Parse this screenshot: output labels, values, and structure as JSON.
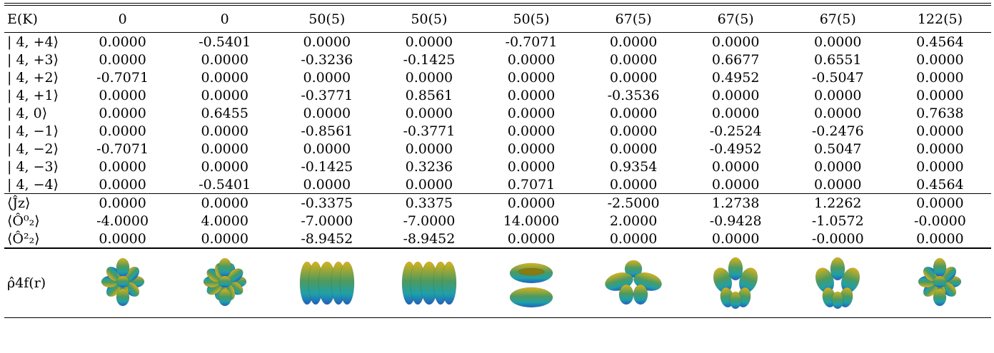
{
  "table": {
    "headers": [
      "E(K)",
      "0",
      "0",
      "50(5)",
      "50(5)",
      "50(5)",
      "67(5)",
      "67(5)",
      "67(5)",
      "122(5)"
    ],
    "rows": [
      {
        "label": "| 4, +4⟩",
        "values": [
          "0.0000",
          "-0.5401",
          "0.0000",
          "0.0000",
          "-0.7071",
          "0.0000",
          "0.0000",
          "0.0000",
          "0.4564"
        ]
      },
      {
        "label": "| 4, +3⟩",
        "values": [
          "0.0000",
          "0.0000",
          "-0.3236",
          "-0.1425",
          "0.0000",
          "0.0000",
          "0.6677",
          "0.6551",
          "0.0000"
        ]
      },
      {
        "label": "| 4, +2⟩",
        "values": [
          "-0.7071",
          "0.0000",
          "0.0000",
          "0.0000",
          "0.0000",
          "0.0000",
          "0.4952",
          "-0.5047",
          "0.0000"
        ]
      },
      {
        "label": "| 4, +1⟩",
        "values": [
          "0.0000",
          "0.0000",
          "-0.3771",
          "0.8561",
          "0.0000",
          "-0.3536",
          "0.0000",
          "0.0000",
          "0.0000"
        ]
      },
      {
        "label": "| 4,   0⟩",
        "values": [
          "0.0000",
          "0.6455",
          "0.0000",
          "0.0000",
          "0.0000",
          "0.0000",
          "0.0000",
          "0.0000",
          "0.7638"
        ]
      },
      {
        "label": "| 4, −1⟩",
        "values": [
          "0.0000",
          "0.0000",
          "-0.8561",
          "-0.3771",
          "0.0000",
          "0.0000",
          "-0.2524",
          "-0.2476",
          "0.0000"
        ]
      },
      {
        "label": "| 4, −2⟩",
        "values": [
          "-0.7071",
          "0.0000",
          "0.0000",
          "0.0000",
          "0.0000",
          "0.0000",
          "-0.4952",
          "0.5047",
          "0.0000"
        ]
      },
      {
        "label": "| 4, −3⟩",
        "values": [
          "0.0000",
          "0.0000",
          "-0.1425",
          "0.3236",
          "0.0000",
          "0.9354",
          "0.0000",
          "0.0000",
          "0.0000"
        ]
      },
      {
        "label": "| 4, −4⟩",
        "values": [
          "0.0000",
          "-0.5401",
          "0.0000",
          "0.0000",
          "0.7071",
          "0.0000",
          "0.0000",
          "0.0000",
          "0.4564"
        ]
      }
    ],
    "expect_rows": [
      {
        "label": "⟨Ĵz⟩",
        "values": [
          "0.0000",
          "0.0000",
          "-0.3375",
          "0.3375",
          "0.0000",
          "-2.5000",
          "1.2738",
          "1.2262",
          "0.0000"
        ]
      },
      {
        "label": "⟨Ô⁰₂⟩",
        "values": [
          "-4.0000",
          "4.0000",
          "-7.0000",
          "-7.0000",
          "14.0000",
          "2.0000",
          "-0.9428",
          "-1.0572",
          "-0.0000"
        ]
      },
      {
        "label": "⟨Ô²₂⟩",
        "values": [
          "0.0000",
          "0.0000",
          "-8.9452",
          "-8.9452",
          "0.0000",
          "0.0000",
          "0.0000",
          "-0.0000",
          "0.0000"
        ]
      }
    ],
    "orbital_row_label": "ρ̂4f(r)",
    "orbital_shapes": [
      "clover-8",
      "clover-8-dense",
      "barrel",
      "barrel",
      "torus-lobes",
      "trefoil-top",
      "tetra-lobes",
      "tetra-lobes",
      "clover-8"
    ],
    "colors": {
      "gold": "#d8b21a",
      "green": "#4e9a5e",
      "teal": "#1fa0a8",
      "blue": "#2060c0"
    }
  }
}
